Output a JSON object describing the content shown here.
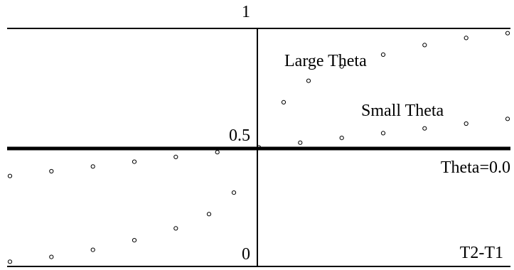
{
  "chart_data": {
    "type": "scatter",
    "x_range": [
      -3.0,
      3.0
    ],
    "ylim": [
      0,
      1
    ],
    "grid": false,
    "ticks": {
      "y_top": "1",
      "y_mid": "0.5",
      "y_bottom": "0"
    },
    "reference_line": {
      "value": 0.5,
      "label": "Theta=0.0"
    },
    "xlabel": "T2-T1",
    "series": [
      {
        "name": "Large Theta",
        "x": [
          -3.0,
          -2.5,
          -2.0,
          -1.5,
          -1.0,
          -0.6,
          -0.3,
          0.0,
          0.3,
          0.6,
          1.0,
          1.5,
          2.0,
          2.5,
          3.0
        ],
        "y": [
          0.02,
          0.04,
          0.07,
          0.11,
          0.16,
          0.22,
          0.31,
          0.5,
          0.69,
          0.78,
          0.84,
          0.89,
          0.93,
          0.96,
          0.98
        ]
      },
      {
        "name": "Small Theta",
        "x": [
          -3.0,
          -2.5,
          -2.0,
          -1.5,
          -1.0,
          -0.5,
          0.0,
          0.5,
          1.0,
          1.5,
          2.0,
          2.5,
          3.0
        ],
        "y": [
          0.38,
          0.4,
          0.42,
          0.44,
          0.46,
          0.48,
          0.5,
          0.52,
          0.54,
          0.56,
          0.58,
          0.6,
          0.62
        ]
      }
    ]
  }
}
